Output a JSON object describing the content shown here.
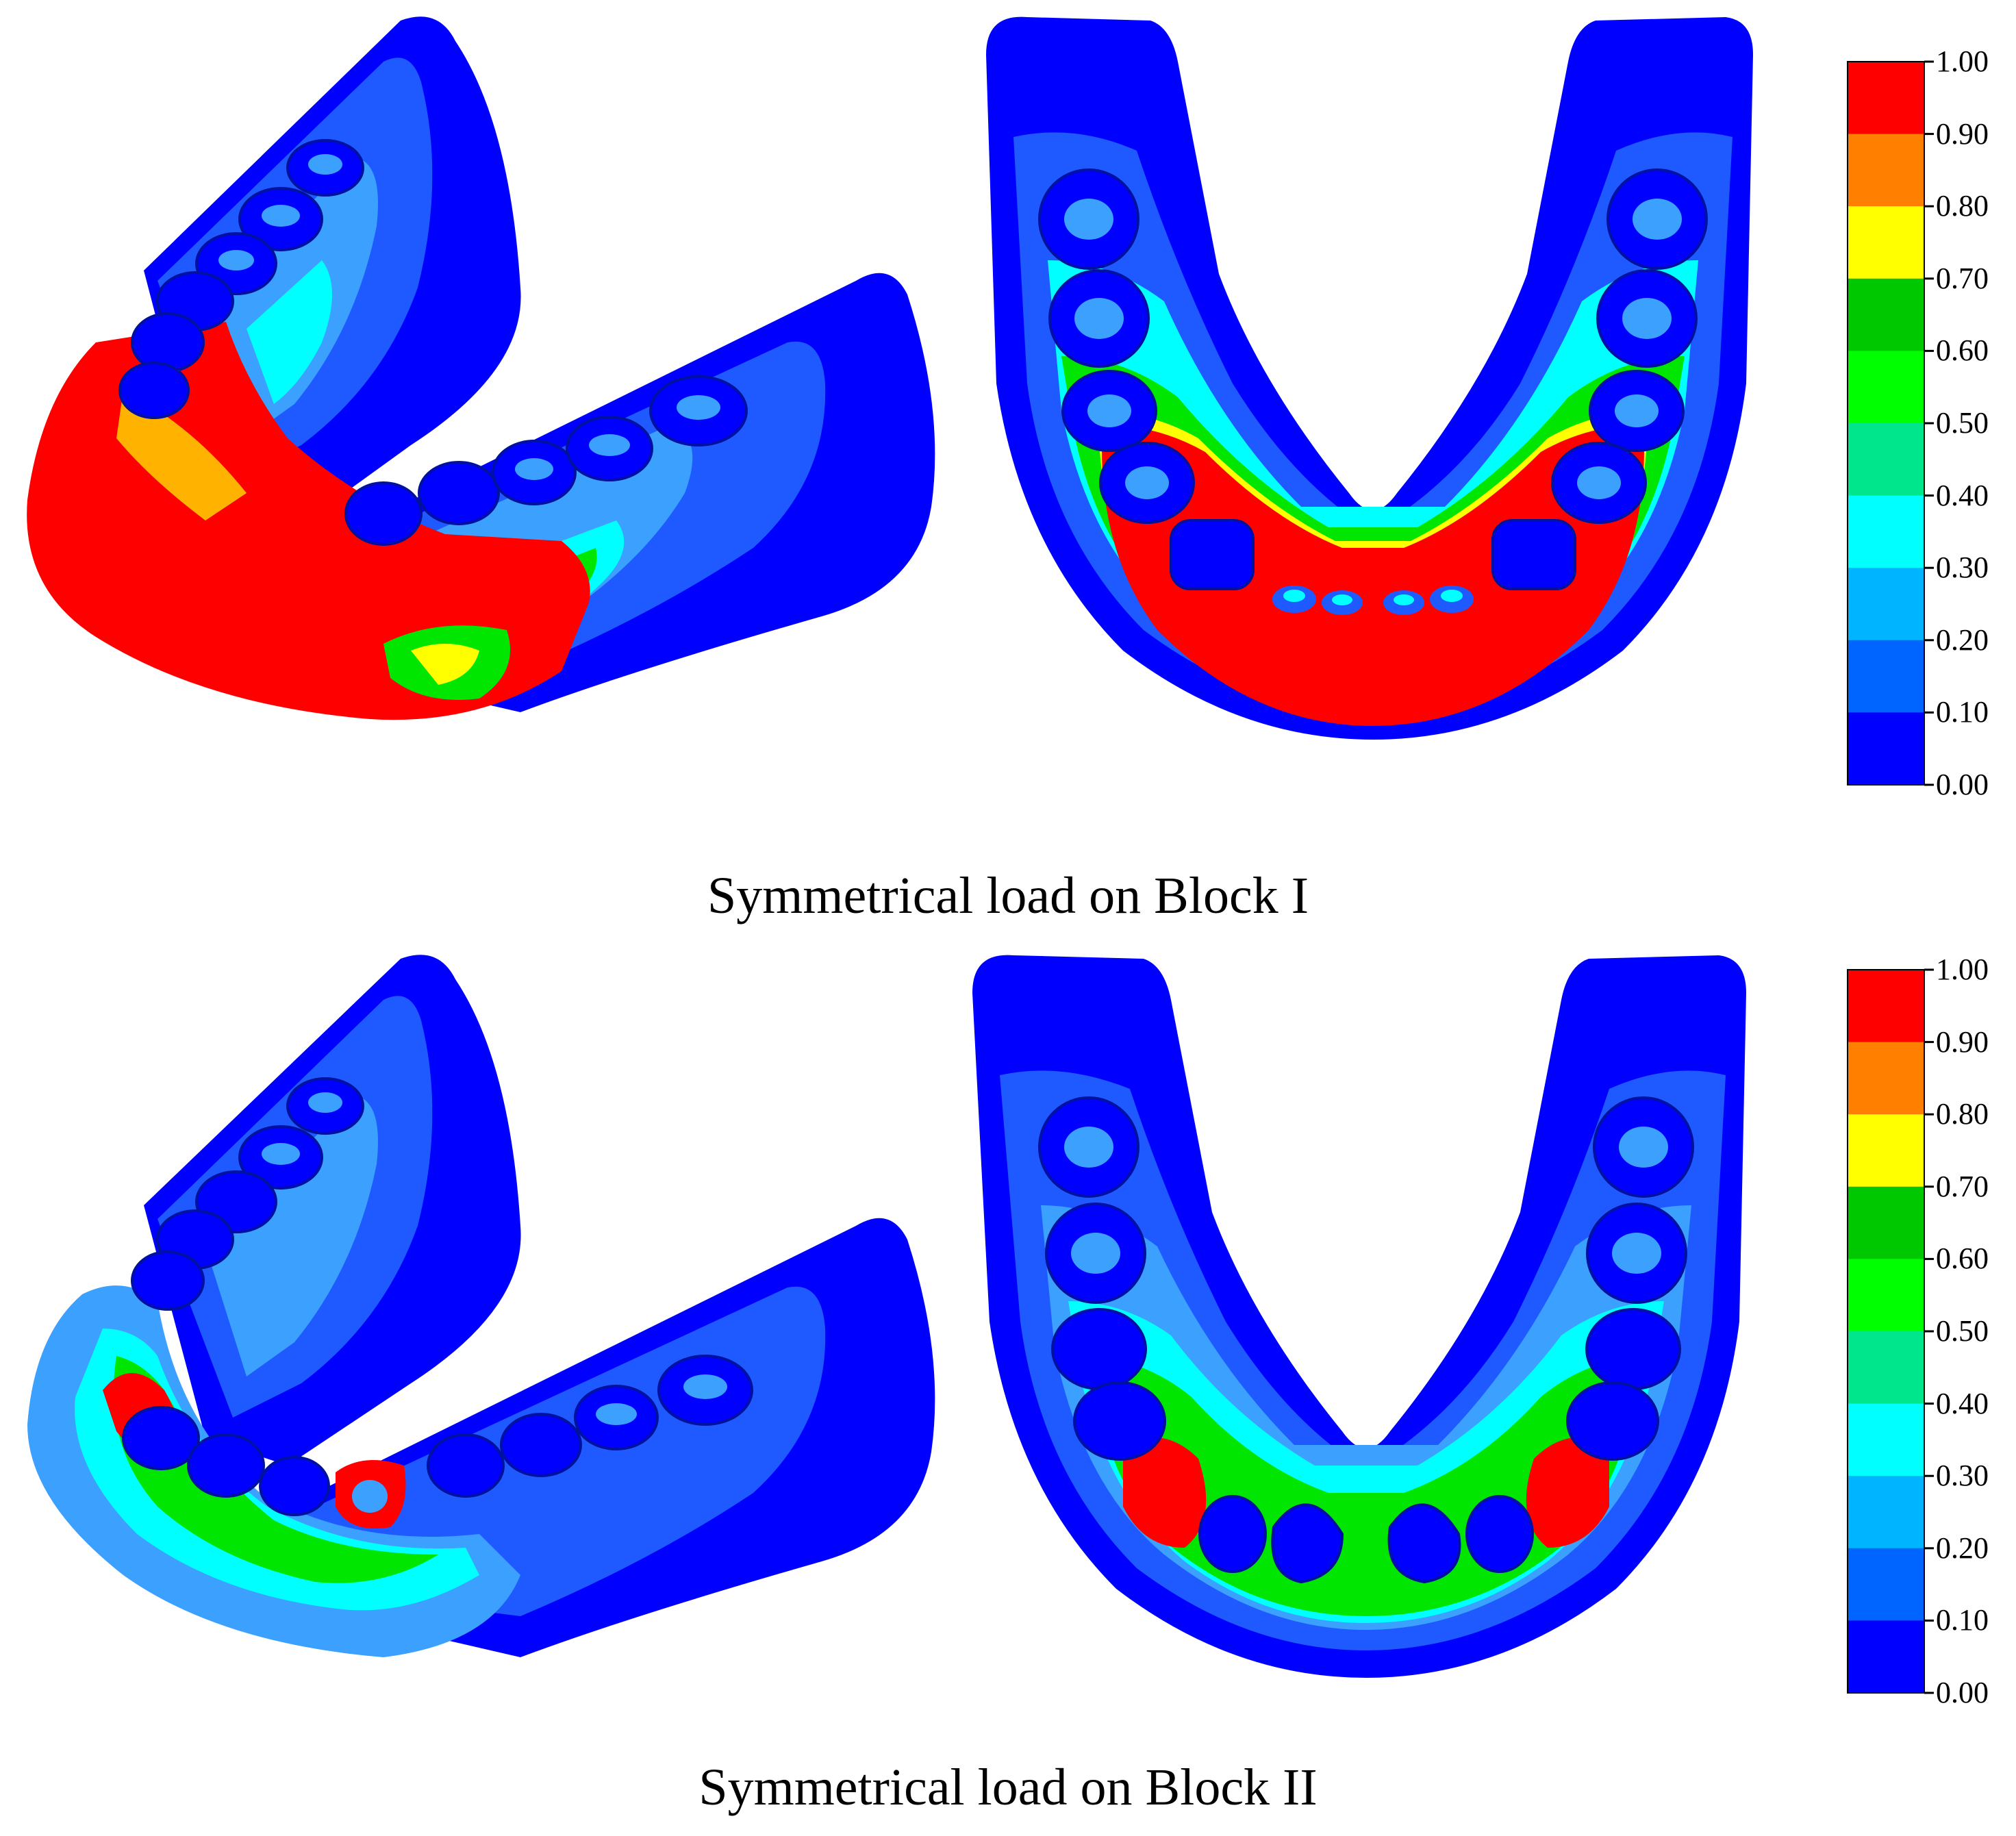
{
  "panels": [
    {
      "caption": "Symmetrical load on Block I",
      "variant": "block1"
    },
    {
      "caption": "Symmetrical load on Block II",
      "variant": "block2"
    }
  ],
  "colorbar": {
    "ticks": [
      "1.00",
      "0.90",
      "0.80",
      "0.70",
      "0.60",
      "0.50",
      "0.40",
      "0.30",
      "0.20",
      "0.10",
      "0.00"
    ],
    "bands": [
      "#ff0000",
      "#ff8000",
      "#ffff00",
      "#00c800",
      "#00ff00",
      "#00e68c",
      "#00ffff",
      "#00b4ff",
      "#0064ff",
      "#0000ff"
    ]
  },
  "colors": {
    "deep_blue": "#0000ff",
    "blue": "#1e5aff",
    "light_blue": "#3ca0ff",
    "cyan": "#00ffff",
    "green": "#00e600",
    "yellow": "#ffff00",
    "orange": "#ff8000",
    "red": "#ff0000"
  }
}
